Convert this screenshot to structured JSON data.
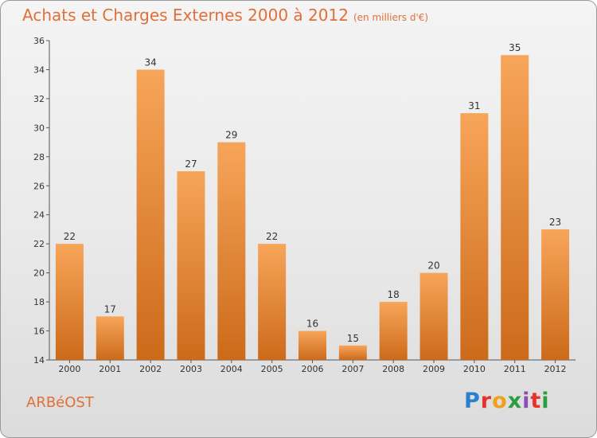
{
  "title": "Achats et Charges Externes 2000 à 2012",
  "subtitle": "(en milliers d'€)",
  "location": "ARBéOST",
  "logo": {
    "text": "Proxiti",
    "letter_colors": [
      "#2a7fd1",
      "#e7322c",
      "#f2a01a",
      "#2a9d3e",
      "#8a4fb8",
      "#e7322c",
      "#2a9d3e"
    ]
  },
  "colors": {
    "bar_top": "#f7a55a",
    "bar_bottom": "#cc6a1a",
    "title": "#e0703a"
  },
  "chart_data": {
    "type": "bar",
    "categories": [
      "2000",
      "2001",
      "2002",
      "2003",
      "2004",
      "2005",
      "2006",
      "2007",
      "2008",
      "2009",
      "2010",
      "2011",
      "2012"
    ],
    "values": [
      22,
      17,
      34,
      27,
      29,
      22,
      16,
      15,
      18,
      20,
      31,
      35,
      23
    ],
    "ylim": [
      14,
      36
    ],
    "yticks": [
      14,
      16,
      18,
      20,
      22,
      24,
      26,
      28,
      30,
      32,
      34,
      36
    ],
    "grid": false,
    "data_labels": true
  }
}
